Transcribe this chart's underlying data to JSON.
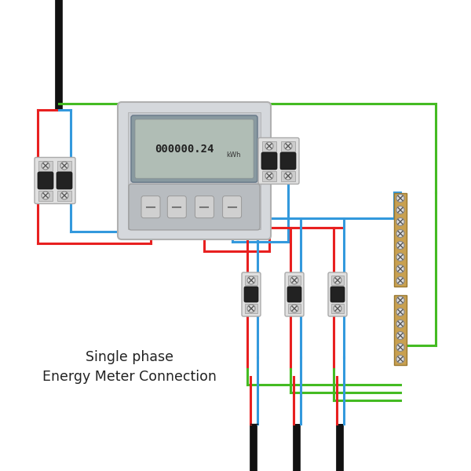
{
  "bg_color": "#ffffff",
  "wire_red": "#e82020",
  "wire_blue": "#3399dd",
  "wire_green": "#44bb22",
  "wire_black": "#111111",
  "wire_lw": 2.2,
  "title_line1": "Single phase",
  "title_line2": "Energy Meter Connection",
  "title_fontsize": 12.5,
  "breaker_face": "#e8e8e8",
  "breaker_edge": "#aaaaaa",
  "terminal_color": "#c8a050",
  "meter_face": "#d0d4d8",
  "lcd_face": "#9aaab0",
  "lcd_text": "#333333"
}
